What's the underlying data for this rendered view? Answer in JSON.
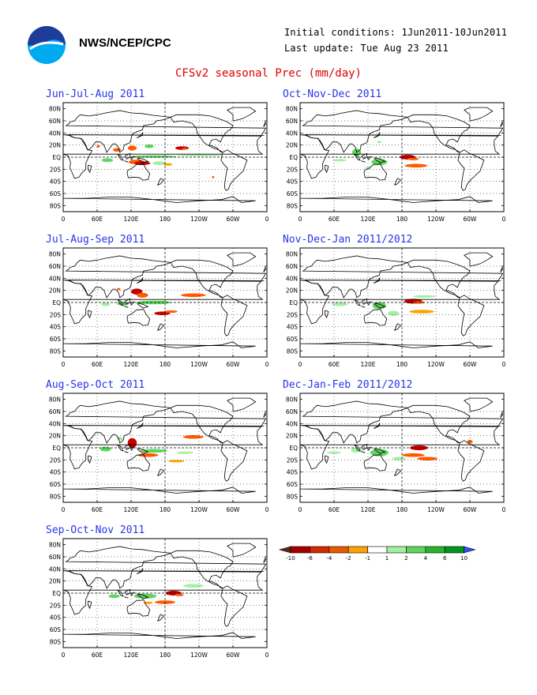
{
  "header": {
    "org": "NWS/NCEP/CPC",
    "initial_conditions": "Initial conditions: 1Jun2011-10Jun2011",
    "last_update": "Last update: Tue Aug 23 2011",
    "title": "CFSv2 seasonal Prec (mm/day)"
  },
  "axes": {
    "lat_labels": [
      "80N",
      "60N",
      "40N",
      "20N",
      "EQ",
      "20S",
      "40S",
      "60S",
      "80S"
    ],
    "lon_labels": [
      "0",
      "60E",
      "120E",
      "180",
      "120W",
      "60W",
      "0"
    ]
  },
  "panels": [
    {
      "id": "jja",
      "title": "Jun-Jul-Aug 2011"
    },
    {
      "id": "ond",
      "title": "Oct-Nov-Dec 2011"
    },
    {
      "id": "jas",
      "title": "Jul-Aug-Sep 2011"
    },
    {
      "id": "ndj",
      "title": "Nov-Dec-Jan 2011/2012"
    },
    {
      "id": "aso",
      "title": "Aug-Sep-Oct 2011"
    },
    {
      "id": "djf",
      "title": "Dec-Jan-Feb 2011/2012"
    },
    {
      "id": "son",
      "title": "Sep-Oct-Nov 2011"
    }
  ],
  "legend": {
    "labels": [
      "-10",
      "-6",
      "-4",
      "-2",
      "-1",
      "1",
      "2",
      "4",
      "6",
      "10"
    ],
    "colors": [
      "#5a2a14",
      "#a50000",
      "#d42a00",
      "#e85a00",
      "#ffa200",
      "#ffffff",
      "#a2f0a2",
      "#5ed65e",
      "#28b428",
      "#00961e",
      "#3050ff"
    ]
  },
  "colors": {
    "title_red": "#e00000",
    "panel_title_blue": "#2a35e8",
    "dry_dark": "#c80000",
    "dry_mid": "#ff5a00",
    "dry_light": "#ffa200",
    "wet_light": "#a2f0a2",
    "wet_mid": "#5ed65e",
    "wet_dark": "#28b428"
  }
}
